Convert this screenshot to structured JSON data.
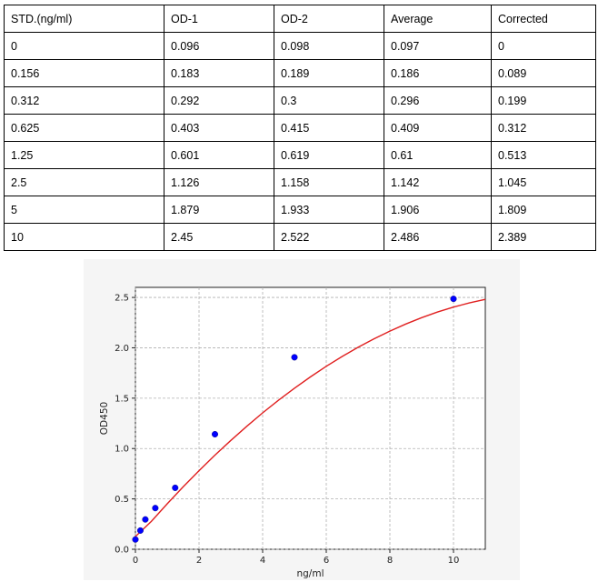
{
  "table": {
    "headers": [
      "STD.(ng/ml)",
      "OD-1",
      "OD-2",
      "Average",
      "Corrected"
    ],
    "rows": [
      [
        "0",
        "0.096",
        "0.098",
        "0.097",
        "0"
      ],
      [
        "0.156",
        "0.183",
        "0.189",
        "0.186",
        "0.089"
      ],
      [
        "0.312",
        "0.292",
        "0.3",
        "0.296",
        "0.199"
      ],
      [
        "0.625",
        "0.403",
        "0.415",
        "0.409",
        "0.312"
      ],
      [
        "1.25",
        "0.601",
        "0.619",
        "0.61",
        "0.513"
      ],
      [
        "2.5",
        "1.126",
        "1.158",
        "1.142",
        "1.045"
      ],
      [
        "5",
        "1.879",
        "1.933",
        "1.906",
        "1.809"
      ],
      [
        "10",
        "2.45",
        "2.522",
        "2.486",
        "2.389"
      ]
    ]
  },
  "chart_data": {
    "type": "scatter",
    "xlabel": "ng/ml",
    "ylabel": "OD450",
    "xlim": [
      0,
      11
    ],
    "ylim": [
      0,
      2.6
    ],
    "xticks": [
      "0",
      "2",
      "4",
      "6",
      "8",
      "10"
    ],
    "yticks": [
      "0.0",
      "0.5",
      "1.0",
      "1.5",
      "2.0",
      "2.5"
    ],
    "grid": true,
    "series": [
      {
        "kind": "points",
        "color": "#0000ff",
        "x": [
          0,
          0.156,
          0.312,
          0.625,
          1.25,
          2.5,
          5,
          10
        ],
        "y": [
          0.097,
          0.186,
          0.296,
          0.409,
          0.61,
          1.142,
          1.906,
          2.486
        ]
      },
      {
        "kind": "fit-curve",
        "color": "#e02020",
        "x": [
          0,
          0.5,
          1,
          1.5,
          2,
          2.5,
          3,
          3.5,
          4,
          4.5,
          5,
          5.5,
          6,
          6.5,
          7,
          7.5,
          8,
          8.5,
          9,
          9.5,
          10,
          10.5,
          11
        ],
        "y": [
          0.126,
          0.276,
          0.451,
          0.619,
          0.78,
          0.934,
          1.081,
          1.221,
          1.354,
          1.48,
          1.599,
          1.711,
          1.816,
          1.914,
          2.005,
          2.089,
          2.166,
          2.236,
          2.299,
          2.355,
          2.404,
          2.446,
          2.481
        ]
      }
    ]
  }
}
